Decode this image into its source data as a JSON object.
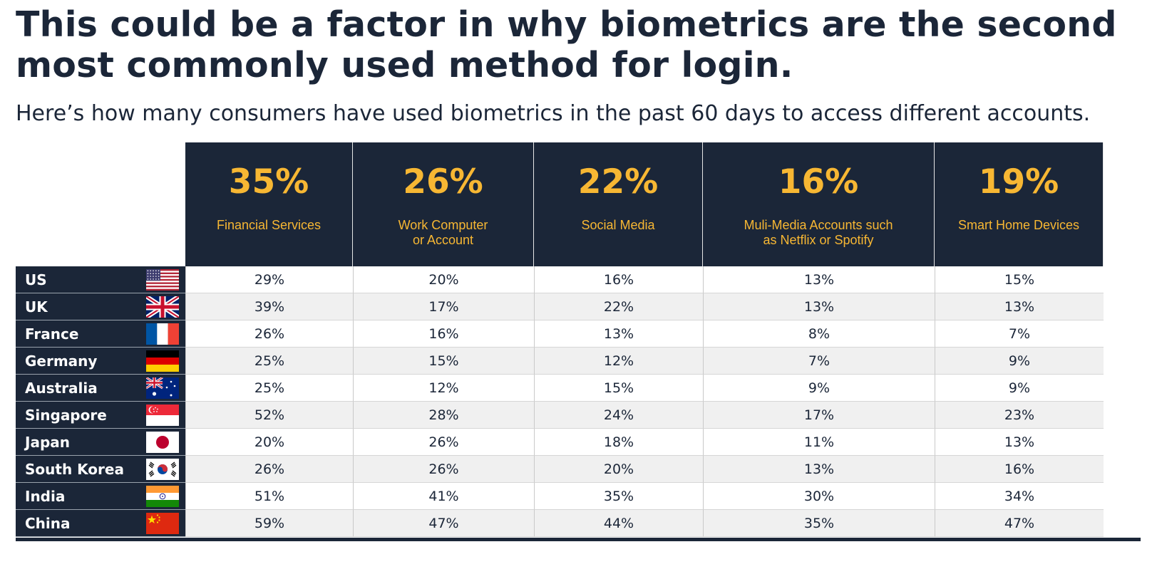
{
  "headline": "This could be a factor in why biometrics are the second most commonly used method for login.",
  "subhead": "Here’s how many consumers have used biometrics in the past 60 days to access different accounts.",
  "colors": {
    "navy": "#1b2638",
    "gold": "#f7b733",
    "row_alt": "#f0f0f0"
  },
  "chart_data": {
    "type": "table",
    "columns": [
      {
        "total": "35%",
        "label": "Financial Services"
      },
      {
        "total": "26%",
        "label": "Work Computer\nor Account"
      },
      {
        "total": "22%",
        "label": "Social Media"
      },
      {
        "total": "16%",
        "label": "Muli-Media Accounts such\nas Netflix or Spotify"
      },
      {
        "total": "19%",
        "label": "Smart Home Devices"
      }
    ],
    "rows": [
      {
        "country": "US",
        "flag": "us-flag-icon",
        "values": [
          "29%",
          "20%",
          "16%",
          "13%",
          "15%"
        ]
      },
      {
        "country": "UK",
        "flag": "uk-flag-icon",
        "values": [
          "39%",
          "17%",
          "22%",
          "13%",
          "13%"
        ]
      },
      {
        "country": "France",
        "flag": "france-flag-icon",
        "values": [
          "26%",
          "16%",
          "13%",
          "8%",
          "7%"
        ]
      },
      {
        "country": "Germany",
        "flag": "germany-flag-icon",
        "values": [
          "25%",
          "15%",
          "12%",
          "7%",
          "9%"
        ]
      },
      {
        "country": "Australia",
        "flag": "australia-flag-icon",
        "values": [
          "25%",
          "12%",
          "15%",
          "9%",
          "9%"
        ]
      },
      {
        "country": "Singapore",
        "flag": "singapore-flag-icon",
        "values": [
          "52%",
          "28%",
          "24%",
          "17%",
          "23%"
        ]
      },
      {
        "country": "Japan",
        "flag": "japan-flag-icon",
        "values": [
          "20%",
          "26%",
          "18%",
          "11%",
          "13%"
        ]
      },
      {
        "country": "South Korea",
        "flag": "south-korea-flag-icon",
        "values": [
          "26%",
          "26%",
          "20%",
          "13%",
          "16%"
        ]
      },
      {
        "country": "India",
        "flag": "india-flag-icon",
        "values": [
          "51%",
          "41%",
          "35%",
          "30%",
          "34%"
        ]
      },
      {
        "country": "China",
        "flag": "china-flag-icon",
        "values": [
          "59%",
          "47%",
          "44%",
          "35%",
          "47%"
        ]
      }
    ]
  }
}
